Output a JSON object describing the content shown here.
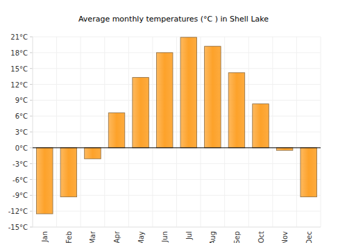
{
  "chart_data": {
    "type": "bar",
    "title": "Average monthly temperatures (°C ) in Shell Lake",
    "categories": [
      "Jan",
      "Feb",
      "Mar",
      "Apr",
      "May",
      "Jun",
      "Jul",
      "Aug",
      "Sep",
      "Oct",
      "Nov",
      "Dec"
    ],
    "values": [
      -12.5,
      -9.3,
      -2.1,
      6.6,
      13.3,
      18.0,
      20.9,
      19.2,
      14.2,
      8.3,
      -0.5,
      -9.3
    ],
    "color": "#fda22a",
    "ylim": [
      -15,
      21
    ],
    "yticks": [
      {
        "value": -15,
        "label": "-15°C"
      },
      {
        "value": -12,
        "label": "-12°C"
      },
      {
        "value": -9,
        "label": "-9°C"
      },
      {
        "value": -6,
        "label": "-6°C"
      },
      {
        "value": -3,
        "label": "-3°C"
      },
      {
        "value": 0,
        "label": "0°C"
      },
      {
        "value": 3,
        "label": "3°C"
      },
      {
        "value": 6,
        "label": "6°C"
      },
      {
        "value": 9,
        "label": "9°C"
      },
      {
        "value": 12,
        "label": "12°C"
      },
      {
        "value": 15,
        "label": "15°C"
      },
      {
        "value": 18,
        "label": "18°C"
      },
      {
        "value": 21,
        "label": "21°C"
      }
    ],
    "grid": true
  }
}
